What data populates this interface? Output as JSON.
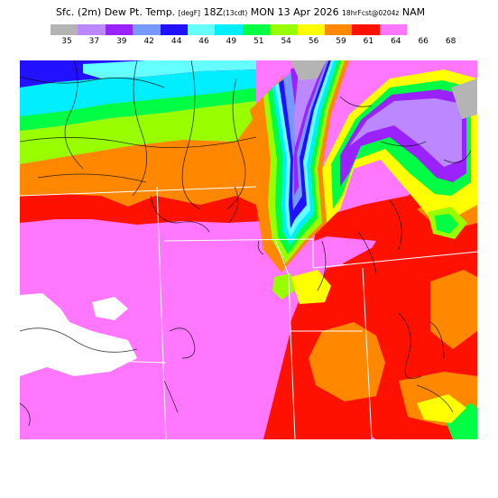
{
  "header": {
    "product": "Sfc. (2m) Dew Pt. Temp.",
    "units": "[degF]",
    "valid_time": "18Z",
    "local_time": "(13cdt)",
    "date": "MON 13 Apr 2026",
    "forecast": "18hrFcst@0204z",
    "model": "NAM"
  },
  "legend": {
    "unit": "degF",
    "colors": [
      "#b4b4b4",
      "#bb88ff",
      "#9922ff",
      "#7799ff",
      "#2211ff",
      "#66ffff",
      "#00eeff",
      "#00ff44",
      "#99ff00",
      "#ffff00",
      "#ff8800",
      "#ff1100",
      "#ff77ff"
    ],
    "labels": [
      "35",
      "37",
      "39",
      "42",
      "44",
      "46",
      "49",
      "51",
      "54",
      "56",
      "59",
      "61",
      "64",
      "66",
      "68"
    ]
  },
  "map": {
    "field": "2 m dew point temperature",
    "colors": {
      "gray": "#b4b4b4",
      "lavender": "#bb88ff",
      "purple": "#9922ff",
      "steelblue": "#7799ff",
      "blue": "#2211ff",
      "lightcyan": "#66ffff",
      "cyan": "#00eeff",
      "green": "#00ff44",
      "lime": "#99ff00",
      "yellow": "#ffff00",
      "orange": "#ff8800",
      "red": "#ff1100",
      "magenta": "#ff77ff",
      "white": "#ffffff"
    }
  }
}
